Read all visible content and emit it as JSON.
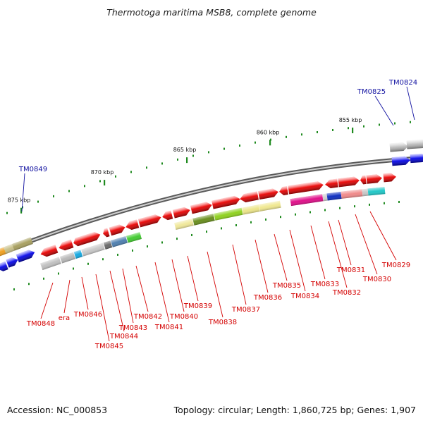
{
  "title": "Thermotoga maritima MSB8, complete genome",
  "footer": {
    "accession": "Accession: NC_000853",
    "summary": "Topology: circular; Length: 1,860,725 bp; Genes: 1,907"
  },
  "colors": {
    "backbone": "#8a8a8a",
    "scale_tick": "#1f8a1f",
    "highlighted_label": "#d40000",
    "neighbor_label": "#1010a0"
  },
  "scale": {
    "major_labels": [
      {
        "kbp": 855,
        "label": "855 kbp"
      },
      {
        "kbp": 860,
        "label": "860 kbp"
      },
      {
        "kbp": 865,
        "label": "865 kbp"
      },
      {
        "kbp": 870,
        "label": "870 kbp"
      },
      {
        "kbp": 875,
        "label": "875 kbp"
      }
    ]
  },
  "neighbor_genes": [
    {
      "name": "TM0824"
    },
    {
      "name": "TM0825"
    },
    {
      "name": "TM0849"
    }
  ],
  "highlighted_genes": [
    {
      "name": "TM0829"
    },
    {
      "name": "TM0830"
    },
    {
      "name": "TM0831"
    },
    {
      "name": "TM0832"
    },
    {
      "name": "TM0833"
    },
    {
      "name": "TM0834"
    },
    {
      "name": "TM0835"
    },
    {
      "name": "TM0836"
    },
    {
      "name": "TM0837"
    },
    {
      "name": "TM0838"
    },
    {
      "name": "TM0839"
    },
    {
      "name": "TM0840"
    },
    {
      "name": "TM0841"
    },
    {
      "name": "TM0842"
    },
    {
      "name": "TM0843"
    },
    {
      "name": "TM0844"
    },
    {
      "name": "TM0845"
    },
    {
      "name": "TM0846"
    },
    {
      "name": "era"
    },
    {
      "name": "TM0848"
    }
  ]
}
